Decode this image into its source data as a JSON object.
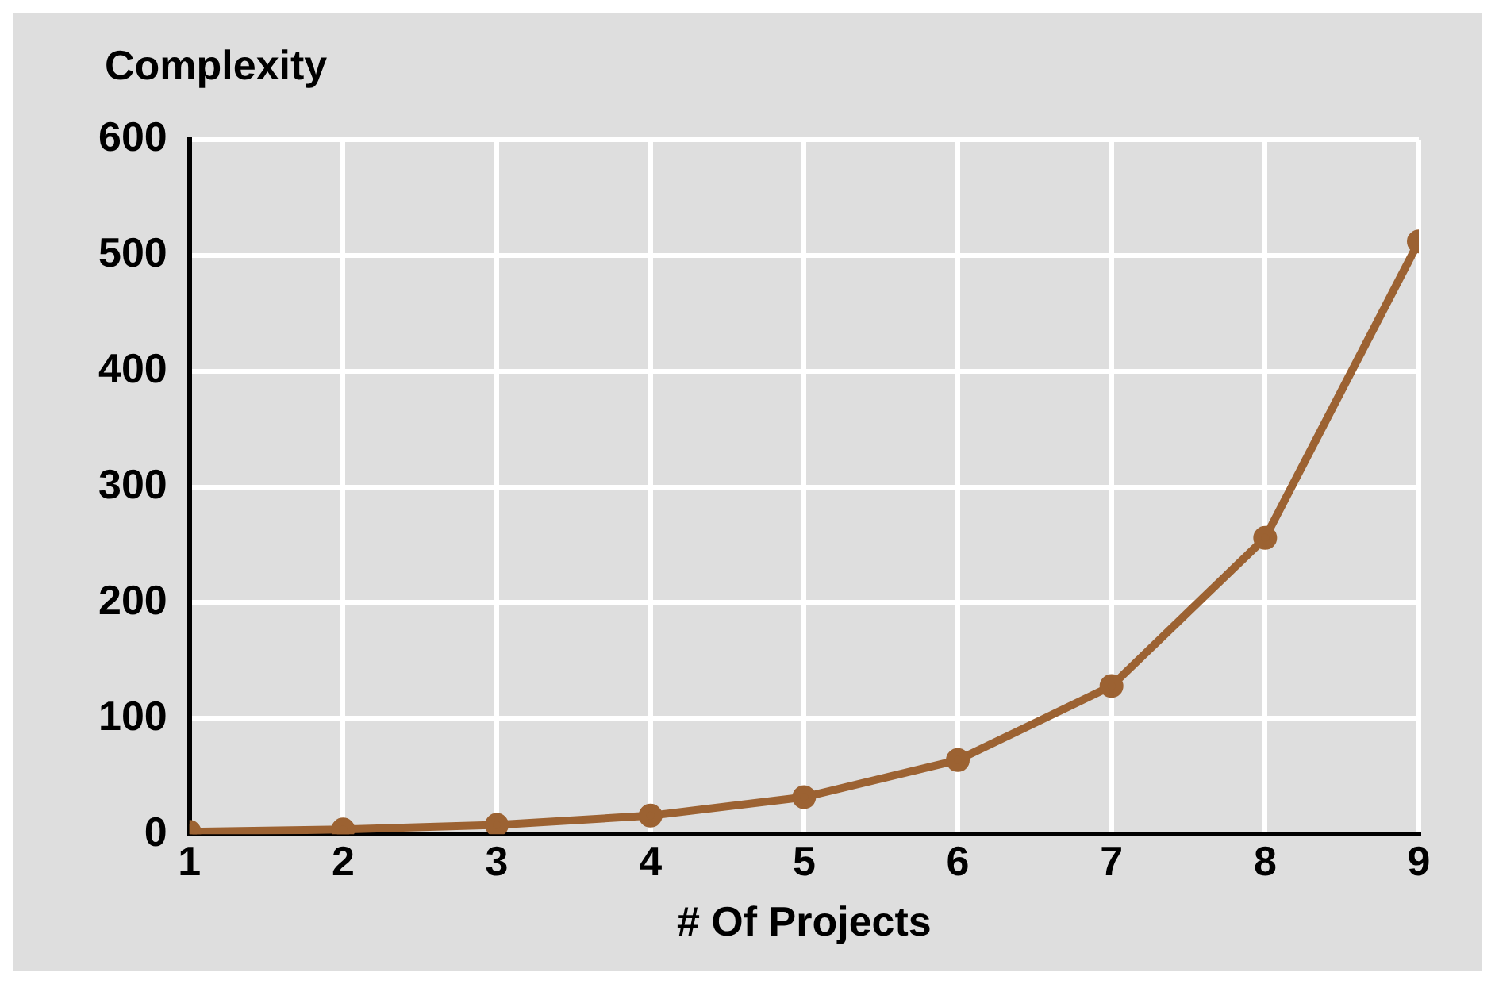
{
  "chart_data": {
    "type": "line",
    "ylabel": "Complexity",
    "xlabel": "# Of Projects",
    "x": [
      1,
      2,
      3,
      4,
      5,
      6,
      7,
      8,
      9
    ],
    "series": [
      {
        "color": "#9c6232",
        "values": [
          2,
          4,
          8,
          16,
          32,
          64,
          128,
          256,
          512
        ]
      }
    ],
    "xlim": [
      1,
      9
    ],
    "xticks": [
      1,
      2,
      3,
      4,
      5,
      6,
      7,
      8,
      9
    ],
    "ylim": [
      0,
      600
    ],
    "yticks": [
      0,
      100,
      200,
      300,
      400,
      500,
      600
    ],
    "grid": true,
    "legend": false,
    "marker": "circle",
    "line_style": "solid"
  }
}
